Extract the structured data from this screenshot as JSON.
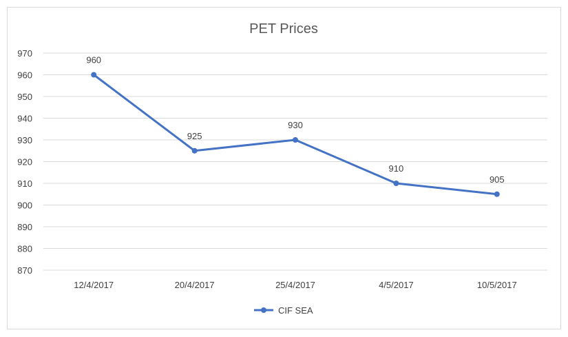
{
  "chart_data": {
    "type": "line",
    "title": "PET Prices",
    "xlabel": "",
    "ylabel": "",
    "categories": [
      "12/4/2017",
      "20/4/2017",
      "25/4/2017",
      "4/5/2017",
      "10/5/2017"
    ],
    "series": [
      {
        "name": "CIF SEA",
        "values": [
          960,
          925,
          930,
          910,
          905
        ],
        "color": "#4472C4"
      }
    ],
    "ylim": [
      870,
      970
    ],
    "ytick_step": 10,
    "grid": true,
    "data_labels": [
      "960",
      "925",
      "930",
      "910",
      "905"
    ],
    "legend_position": "bottom"
  }
}
